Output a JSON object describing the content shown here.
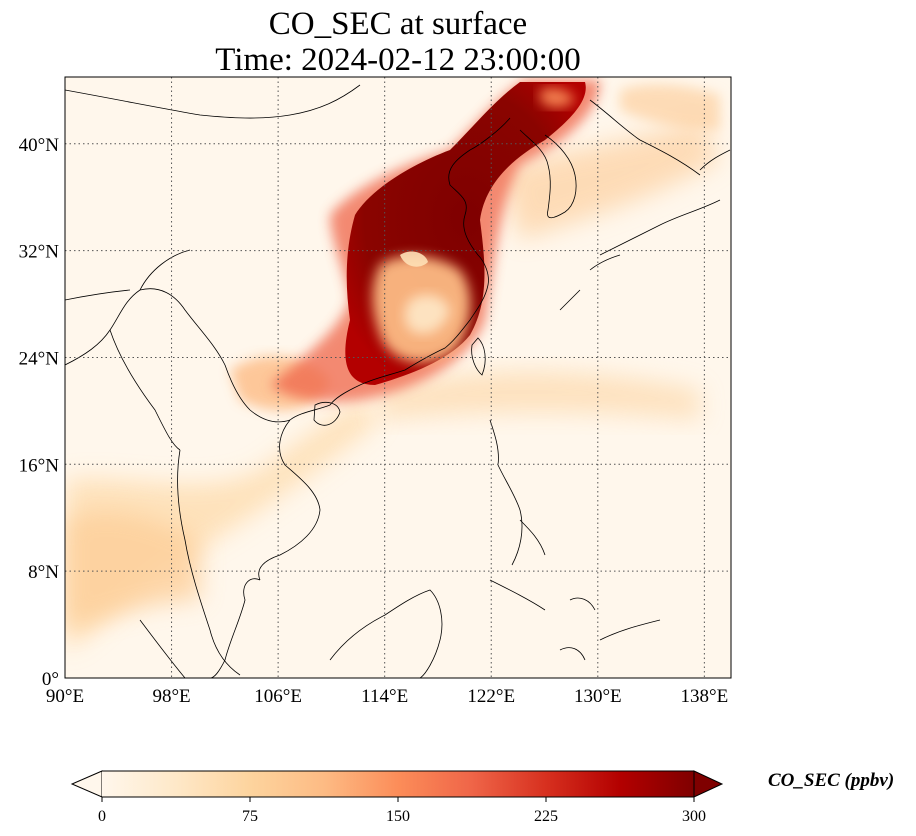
{
  "title": {
    "line1": "CO_SEC at surface",
    "line2": "Time: 2024-02-12 23:00:00"
  },
  "map": {
    "lon_range": [
      90,
      140
    ],
    "lat_range": [
      0,
      45
    ],
    "lon_ticks": [
      90,
      98,
      106,
      114,
      122,
      130,
      138
    ],
    "lat_ticks": [
      0,
      8,
      16,
      24,
      32,
      40
    ],
    "lon_tick_labels": [
      "90°E",
      "98°E",
      "106°E",
      "114°E",
      "122°E",
      "130°E",
      "138°E"
    ],
    "lat_tick_labels": [
      "0°",
      "8°N",
      "16°N",
      "24°N",
      "32°N",
      "40°N"
    ],
    "gridlines": true,
    "colormap": "OrRd"
  },
  "colorbar": {
    "label": "CO_SEC (ppbv)",
    "min": 0,
    "max": 300,
    "ticks": [
      0,
      75,
      150,
      225,
      300
    ],
    "tick_labels": [
      "0",
      "75",
      "150",
      "225",
      "300"
    ],
    "extend": "both",
    "colors": [
      "#fff7ec",
      "#fee8c8",
      "#fdd49e",
      "#fdbb84",
      "#fc8d59",
      "#ef6548",
      "#d7301f",
      "#b30000",
      "#7f0000"
    ]
  }
}
